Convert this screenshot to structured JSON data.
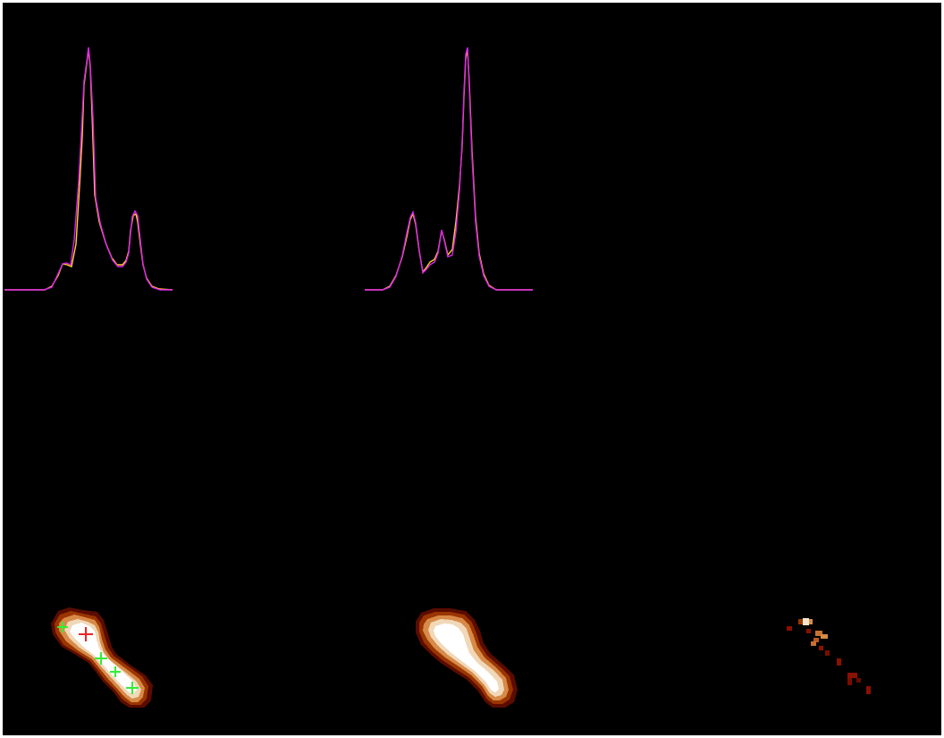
{
  "window": {
    "background": "#000000",
    "border": "#ffffff"
  },
  "colors": {
    "model_line": "#ffd21e",
    "data_line": "#dd22ee",
    "marker_primary": "#ee2222",
    "marker_secondary": "#33ee33"
  },
  "panels": {
    "profile_left": {
      "kind": "spectrum-profile"
    },
    "profile_middle": {
      "kind": "spectrum-profile"
    },
    "image_data": {
      "kind": "heat-image",
      "marker_count": 4
    },
    "image_model": {
      "kind": "heat-image"
    },
    "image_residual": {
      "kind": "heat-image"
    }
  }
}
